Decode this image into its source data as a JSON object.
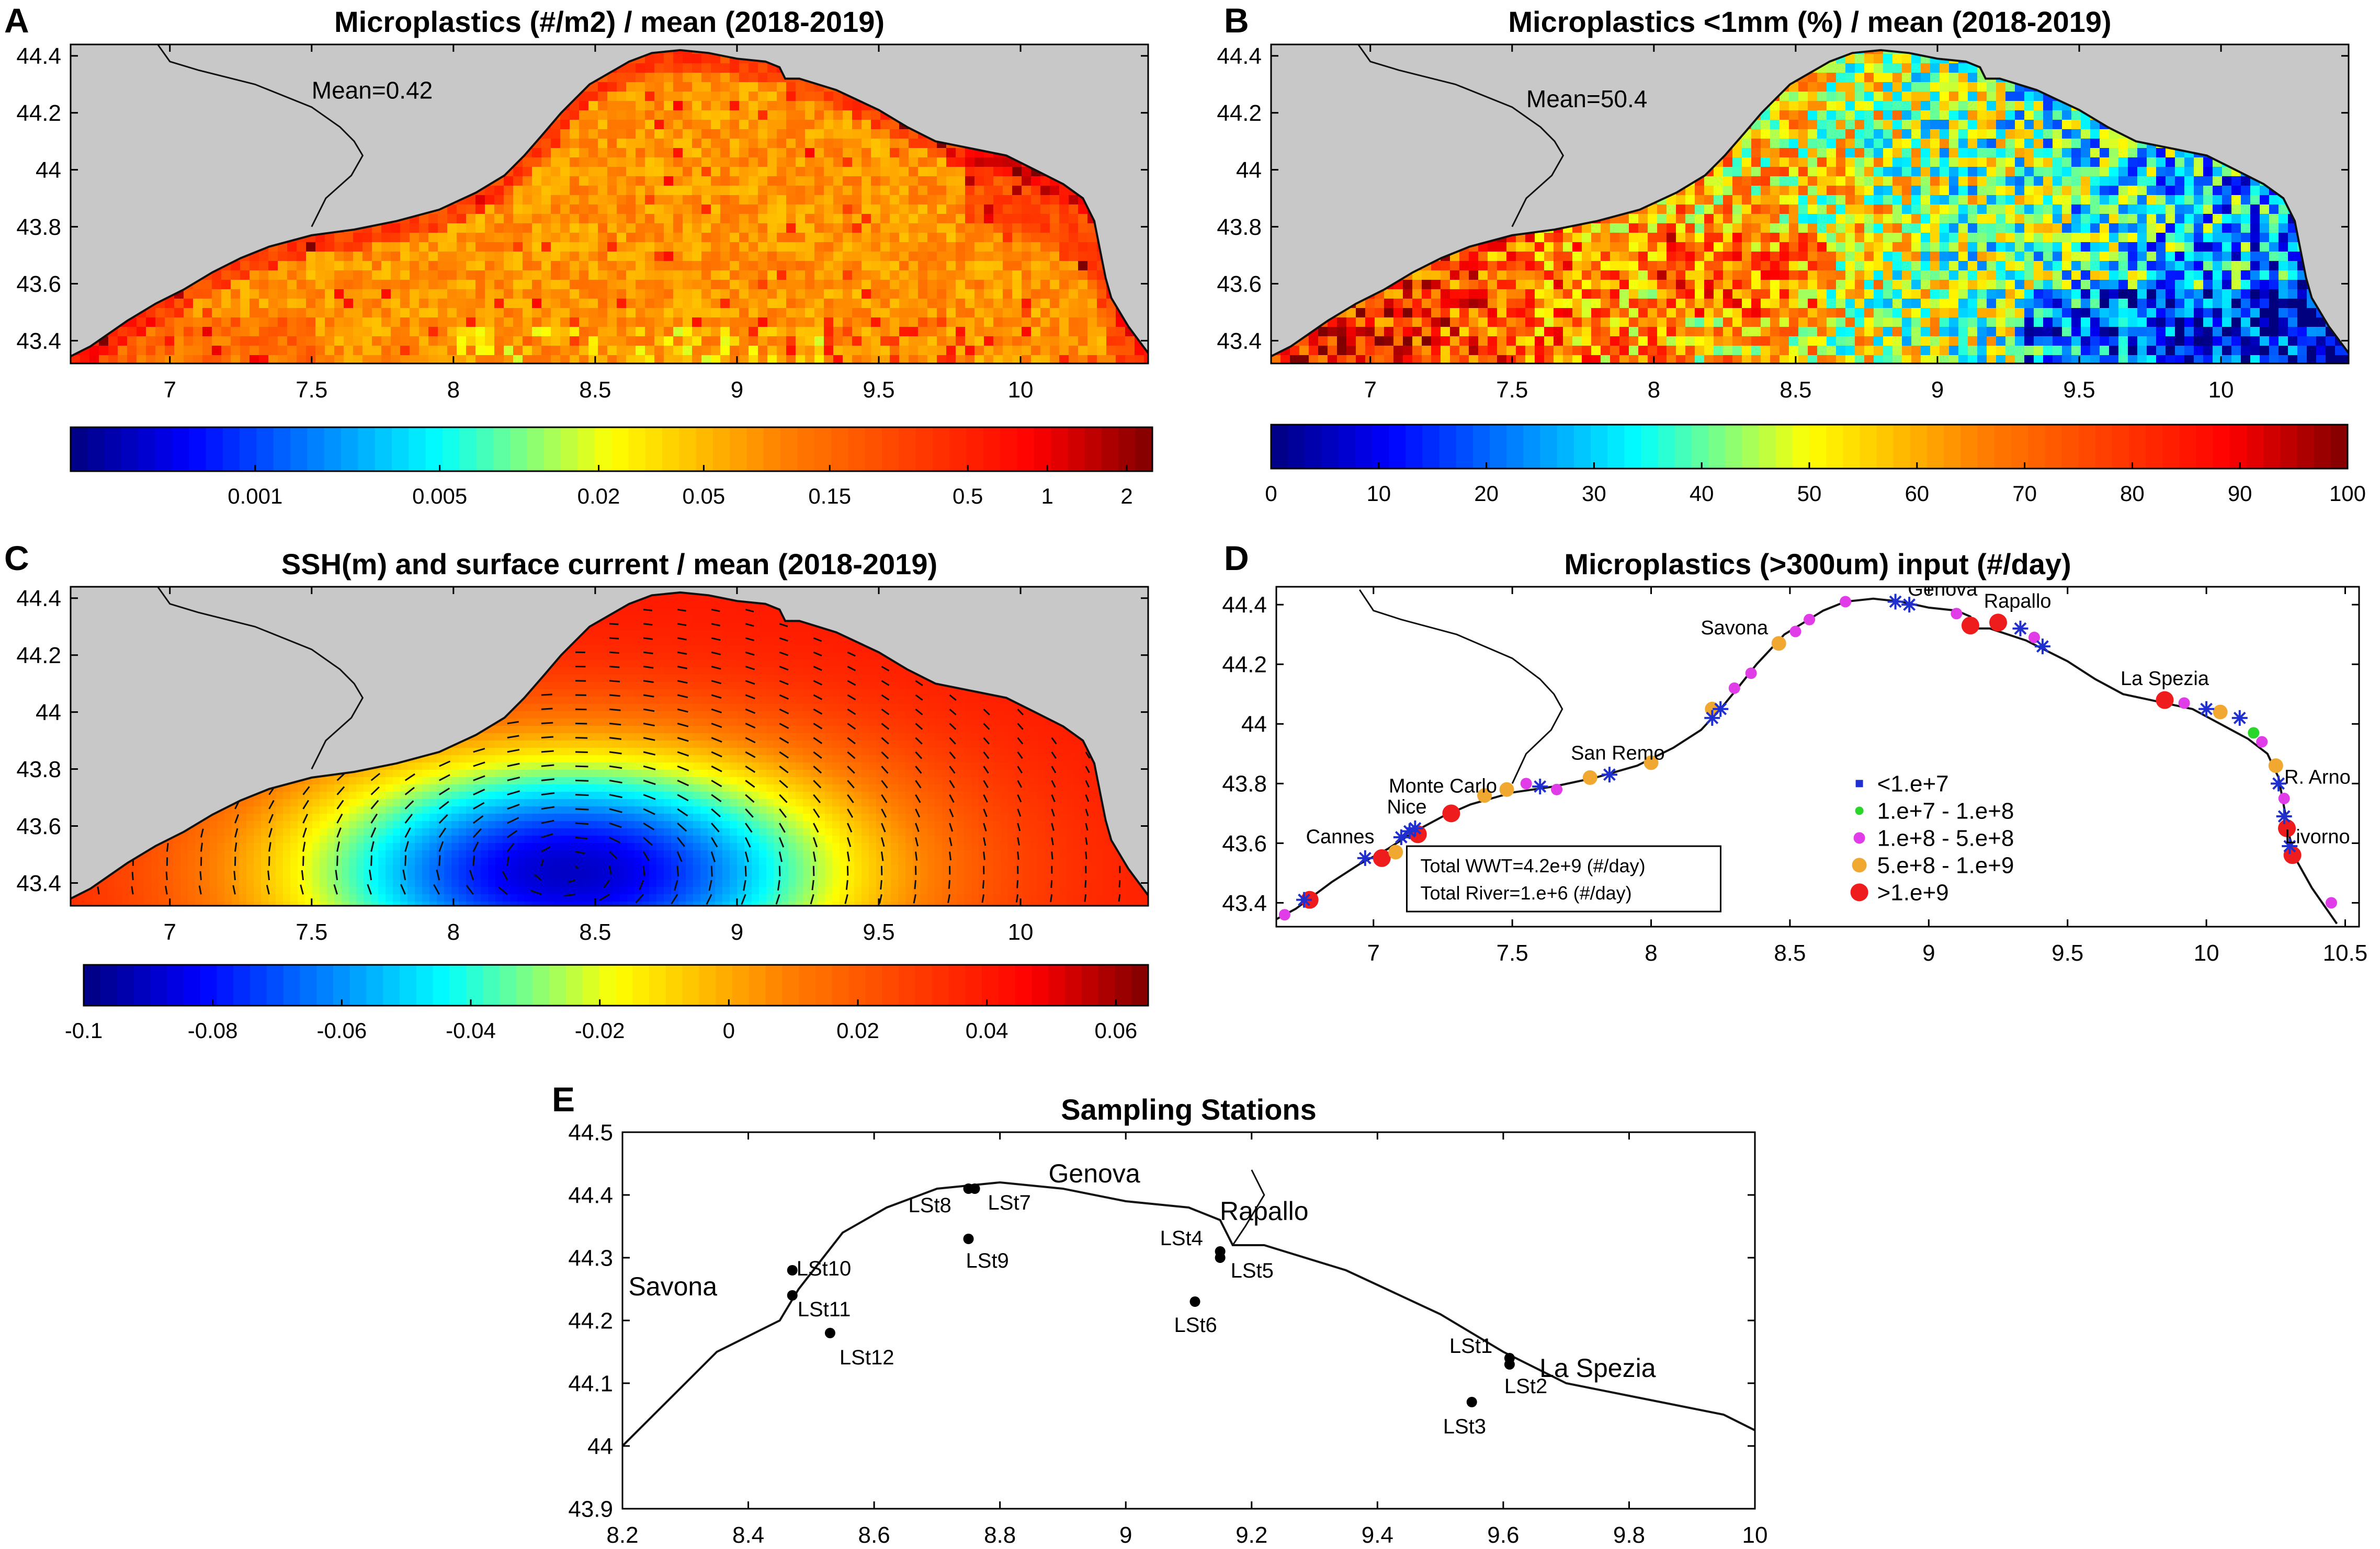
{
  "colors": {
    "land": "#c8c8c8",
    "coast": "#111111",
    "wwt_star": "#1f2fd0",
    "green": "#2ad62a",
    "magenta": "#e03ce8",
    "orange": "#f0a830",
    "red": "#ee1c1c"
  },
  "chart_data": [
    {
      "id": "A",
      "panel_letter": "A",
      "type": "heatmap",
      "title": "Microplastics (#/m2) / mean (2018-2019)",
      "annotation": "Mean=0.42",
      "xlim": [
        6.65,
        10.45
      ],
      "ylim": [
        43.32,
        44.44
      ],
      "xticks": [
        7,
        7.5,
        8,
        8.5,
        9,
        9.5,
        10
      ],
      "xticklabels": [
        "7",
        "7.5",
        "8",
        "8.5",
        "9",
        "9.5",
        "10"
      ],
      "yticks": [
        43.4,
        43.6,
        43.8,
        44,
        44.2,
        44.4
      ],
      "yticklabels": [
        "43.4",
        "43.6",
        "43.8",
        "44",
        "44.2",
        "44.4"
      ],
      "colorbar": {
        "scale": "log",
        "range": [
          0.0002,
          2.5
        ],
        "ticks": [
          0.001,
          0.005,
          0.02,
          0.05,
          0.15,
          0.5,
          1,
          2
        ],
        "ticklabels": [
          "0.001",
          "0.005",
          "0.02",
          "0.05",
          "0.15",
          "0.5",
          "1",
          "2"
        ]
      },
      "fields": {
        "dominant_range": [
          0.05,
          0.15
        ],
        "high_near_coast_east": [
          0.5,
          2
        ],
        "low_patches_southwest": [
          0.01,
          0.05
        ]
      }
    },
    {
      "id": "B",
      "panel_letter": "B",
      "type": "heatmap",
      "title": "Microplastics <1mm (%) / mean (2018-2019)",
      "annotation": "Mean=50.4",
      "xlim": [
        6.65,
        10.45
      ],
      "ylim": [
        43.32,
        44.44
      ],
      "xticks": [
        7,
        7.5,
        8,
        8.5,
        9,
        9.5,
        10
      ],
      "xticklabels": [
        "7",
        "7.5",
        "8",
        "8.5",
        "9",
        "9.5",
        "10"
      ],
      "yticks": [
        43.4,
        43.6,
        43.8,
        44,
        44.2,
        44.4
      ],
      "yticklabels": [
        "43.4",
        "43.6",
        "43.8",
        "44",
        "44.2",
        "44.4"
      ],
      "colorbar": {
        "scale": "linear",
        "range": [
          0,
          100
        ],
        "ticks": [
          0,
          10,
          20,
          30,
          40,
          50,
          60,
          70,
          80,
          90,
          100
        ],
        "ticklabels": [
          "0",
          "10",
          "20",
          "30",
          "40",
          "50",
          "60",
          "70",
          "80",
          "90",
          "100"
        ]
      },
      "fields": {
        "west_range": [
          60,
          80
        ],
        "east_range": [
          5,
          30
        ]
      }
    },
    {
      "id": "C",
      "panel_letter": "C",
      "type": "heatmap",
      "title": "SSH(m) and surface current / mean (2018-2019)",
      "xlim": [
        6.65,
        10.45
      ],
      "ylim": [
        43.32,
        44.44
      ],
      "xticks": [
        7,
        7.5,
        8,
        8.5,
        9,
        9.5,
        10
      ],
      "xticklabels": [
        "7",
        "7.5",
        "8",
        "8.5",
        "9",
        "9.5",
        "10"
      ],
      "yticks": [
        43.4,
        43.6,
        43.8,
        44,
        44.2,
        44.4
      ],
      "yticklabels": [
        "43.4",
        "43.6",
        "43.8",
        "44",
        "44.2",
        "44.4"
      ],
      "colorbar": {
        "scale": "linear",
        "range": [
          -0.1,
          0.065
        ],
        "ticks": [
          -0.1,
          -0.08,
          -0.06,
          -0.04,
          -0.02,
          0,
          0.02,
          0.04,
          0.06
        ],
        "ticklabels": [
          "-0.1",
          "-0.08",
          "-0.06",
          "-0.04",
          "-0.02",
          "0",
          "0.02",
          "0.04",
          "0.06"
        ]
      },
      "fields": {
        "eddy_center": [
          8.4,
          43.45
        ],
        "eddy_min_ssh": -0.09,
        "coastal_ssh": 0.04,
        "circulation": "cyclonic"
      }
    },
    {
      "id": "D",
      "panel_letter": "D",
      "type": "scatter",
      "title": "Microplastics (>300um) input (#/day)",
      "xlim": [
        6.65,
        10.55
      ],
      "ylim": [
        43.32,
        44.46
      ],
      "xticks": [
        7,
        7.5,
        8,
        8.5,
        9,
        9.5,
        10,
        10.5
      ],
      "xticklabels": [
        "7",
        "7.5",
        "8",
        "8.5",
        "9",
        "9.5",
        "10",
        "10.5"
      ],
      "yticks": [
        43.4,
        43.6,
        43.8,
        44,
        44.2,
        44.4
      ],
      "yticklabels": [
        "43.4",
        "43.6",
        "43.8",
        "44",
        "44.2",
        "44.4"
      ],
      "city_labels": [
        {
          "text": "Genova",
          "x": 9.05,
          "y": 44.43
        },
        {
          "text": "Rapallo",
          "x": 9.32,
          "y": 44.39
        },
        {
          "text": "Savona",
          "x": 8.3,
          "y": 44.3
        },
        {
          "text": "La Spezia",
          "x": 9.85,
          "y": 44.13
        },
        {
          "text": "San Remo",
          "x": 7.88,
          "y": 43.88
        },
        {
          "text": "Monte Carlo",
          "x": 7.25,
          "y": 43.77
        },
        {
          "text": "Nice",
          "x": 7.12,
          "y": 43.7
        },
        {
          "text": "Cannes",
          "x": 6.88,
          "y": 43.6
        },
        {
          "text": "R. Arno",
          "x": 10.4,
          "y": 43.8
        },
        {
          "text": "Livorno",
          "x": 10.4,
          "y": 43.6
        }
      ],
      "legend": {
        "location": "center-right",
        "entries": [
          "<1.e+7",
          "1.e+7 - 1.e+8",
          "1.e+8 - 5.e+8",
          "5.e+8 - 1.e+9",
          ">1.e+9"
        ]
      },
      "totals": [
        "Total WWT=4.2e+9 (#/day)",
        "Total River=1.e+6 (#/day)"
      ],
      "wwt_stars": [
        [
          6.75,
          43.41
        ],
        [
          6.97,
          43.55
        ],
        [
          7.1,
          43.62
        ],
        [
          7.13,
          43.64
        ],
        [
          7.15,
          43.65
        ],
        [
          7.6,
          43.79
        ],
        [
          7.85,
          43.83
        ],
        [
          8.22,
          44.02
        ],
        [
          8.25,
          44.05
        ],
        [
          8.88,
          44.41
        ],
        [
          8.93,
          44.4
        ],
        [
          9.33,
          44.32
        ],
        [
          9.41,
          44.26
        ],
        [
          10.0,
          44.05
        ],
        [
          10.12,
          44.02
        ],
        [
          10.26,
          43.8
        ],
        [
          10.28,
          43.69
        ],
        [
          10.3,
          43.59
        ]
      ],
      "dots": [
        {
          "x": 6.68,
          "y": 43.36,
          "cls": "magenta"
        },
        {
          "x": 6.77,
          "y": 43.41,
          "cls": "red"
        },
        {
          "x": 7.03,
          "y": 43.55,
          "cls": "red"
        },
        {
          "x": 7.08,
          "y": 43.57,
          "cls": "orange"
        },
        {
          "x": 7.16,
          "y": 43.63,
          "cls": "red"
        },
        {
          "x": 7.28,
          "y": 43.7,
          "cls": "red"
        },
        {
          "x": 7.4,
          "y": 43.76,
          "cls": "orange"
        },
        {
          "x": 7.48,
          "y": 43.78,
          "cls": "orange"
        },
        {
          "x": 7.55,
          "y": 43.8,
          "cls": "magenta"
        },
        {
          "x": 7.66,
          "y": 43.78,
          "cls": "magenta"
        },
        {
          "x": 7.78,
          "y": 43.82,
          "cls": "orange"
        },
        {
          "x": 8.0,
          "y": 43.87,
          "cls": "orange"
        },
        {
          "x": 8.22,
          "y": 44.05,
          "cls": "orange"
        },
        {
          "x": 8.3,
          "y": 44.12,
          "cls": "magenta"
        },
        {
          "x": 8.36,
          "y": 44.17,
          "cls": "magenta"
        },
        {
          "x": 8.46,
          "y": 44.27,
          "cls": "orange"
        },
        {
          "x": 8.52,
          "y": 44.31,
          "cls": "magenta"
        },
        {
          "x": 8.57,
          "y": 44.35,
          "cls": "magenta"
        },
        {
          "x": 8.7,
          "y": 44.41,
          "cls": "magenta"
        },
        {
          "x": 9.1,
          "y": 44.37,
          "cls": "magenta"
        },
        {
          "x": 9.15,
          "y": 44.33,
          "cls": "red"
        },
        {
          "x": 9.25,
          "y": 44.34,
          "cls": "red"
        },
        {
          "x": 9.38,
          "y": 44.29,
          "cls": "magenta"
        },
        {
          "x": 9.85,
          "y": 44.08,
          "cls": "red"
        },
        {
          "x": 9.92,
          "y": 44.07,
          "cls": "magenta"
        },
        {
          "x": 10.05,
          "y": 44.04,
          "cls": "orange"
        },
        {
          "x": 10.17,
          "y": 43.97,
          "cls": "green"
        },
        {
          "x": 10.2,
          "y": 43.94,
          "cls": "magenta"
        },
        {
          "x": 10.25,
          "y": 43.86,
          "cls": "orange"
        },
        {
          "x": 10.28,
          "y": 43.75,
          "cls": "magenta"
        },
        {
          "x": 10.29,
          "y": 43.65,
          "cls": "red"
        },
        {
          "x": 10.31,
          "y": 43.56,
          "cls": "red"
        },
        {
          "x": 10.45,
          "y": 43.4,
          "cls": "magenta"
        }
      ]
    },
    {
      "id": "E",
      "panel_letter": "E",
      "type": "scatter",
      "title": "Sampling Stations",
      "xlim": [
        8.2,
        10.0
      ],
      "ylim": [
        43.9,
        44.5
      ],
      "xticks": [
        8.2,
        8.4,
        8.6,
        8.8,
        9,
        9.2,
        9.4,
        9.6,
        9.8,
        10
      ],
      "xticklabels": [
        "8.2",
        "8.4",
        "8.6",
        "8.8",
        "9",
        "9.2",
        "9.4",
        "9.6",
        "9.8",
        "10"
      ],
      "yticks": [
        43.9,
        44,
        44.1,
        44.2,
        44.3,
        44.4,
        44.5
      ],
      "yticklabels": [
        "43.9",
        "44",
        "44.1",
        "44.2",
        "44.3",
        "44.4",
        "44.5"
      ],
      "city_labels": [
        {
          "text": "Genova",
          "x": 8.95,
          "y": 44.42
        },
        {
          "text": "Rapallo",
          "x": 9.22,
          "y": 44.36
        },
        {
          "text": "Savona",
          "x": 8.28,
          "y": 44.24
        },
        {
          "text": "La Spezia",
          "x": 9.75,
          "y": 44.11
        }
      ],
      "stations": [
        {
          "name": "LSt1",
          "x": 9.61,
          "y": 44.14
        },
        {
          "name": "LSt2",
          "x": 9.61,
          "y": 44.13
        },
        {
          "name": "LSt3",
          "x": 9.55,
          "y": 44.07
        },
        {
          "name": "LSt4",
          "x": 9.15,
          "y": 44.31
        },
        {
          "name": "LSt5",
          "x": 9.15,
          "y": 44.3
        },
        {
          "name": "LSt6",
          "x": 9.11,
          "y": 44.23
        },
        {
          "name": "LSt7",
          "x": 8.76,
          "y": 44.41
        },
        {
          "name": "LSt8",
          "x": 8.75,
          "y": 44.41
        },
        {
          "name": "LSt9",
          "x": 8.75,
          "y": 44.33
        },
        {
          "name": "LSt10",
          "x": 8.47,
          "y": 44.28
        },
        {
          "name": "LSt11",
          "x": 8.47,
          "y": 44.24
        },
        {
          "name": "LSt12",
          "x": 8.53,
          "y": 44.18
        }
      ]
    }
  ]
}
